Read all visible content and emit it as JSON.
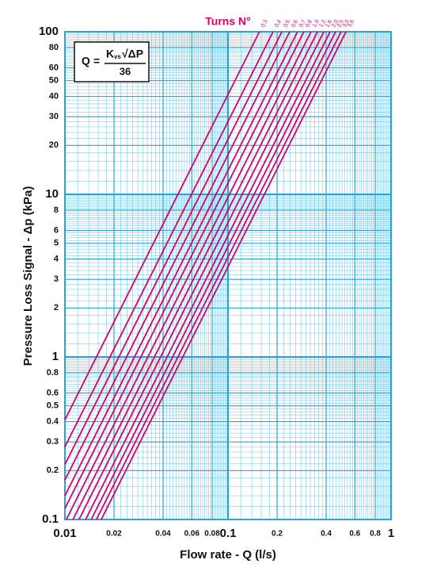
{
  "chart_data": {
    "type": "line",
    "xlabel": "Flow rate - Q (l/s)",
    "ylabel": "Pressure Loss Signal  - Δp (kPa)",
    "legend_title": "Turns N°",
    "formula": {
      "lhs": "Q",
      "eq": "=",
      "k": "K",
      "sub": "vs",
      "root": "√ΔP",
      "denominator": "36"
    },
    "xscale": "log",
    "yscale": "log",
    "grid": true,
    "color": "#d4006f",
    "grid_color": "#29a6d6",
    "xlim": [
      0.01,
      1
    ],
    "ylim": [
      0.1,
      100
    ],
    "xticks": [
      0.01,
      0.02,
      0.04,
      0.06,
      0.08,
      0.1,
      0.2,
      0.4,
      0.6,
      0.8,
      1
    ],
    "yticks": [
      0.1,
      0.2,
      0.3,
      0.4,
      0.5,
      0.6,
      0.8,
      1,
      2,
      3,
      4,
      5,
      6,
      8,
      10,
      20,
      30,
      40,
      50,
      60,
      80,
      100
    ],
    "series": [
      {
        "name": "0.3",
        "x": [
          0.01,
          0.156
        ],
        "values": [
          0.41,
          100
        ]
      },
      {
        "name": "0.4",
        "x": [
          0.01,
          0.189
        ],
        "values": [
          0.28,
          100
        ]
      },
      {
        "name": "0.5",
        "x": [
          0.01,
          0.214
        ],
        "values": [
          0.218,
          100
        ]
      },
      {
        "name": "0.6",
        "x": [
          0.01,
          0.239
        ],
        "values": [
          0.175,
          100
        ]
      },
      {
        "name": "0.7",
        "x": [
          0.01,
          0.267
        ],
        "values": [
          0.14,
          100
        ]
      },
      {
        "name": "0.8",
        "x": [
          0.01,
          0.292
        ],
        "values": [
          0.117,
          100
        ]
      },
      {
        "name": "1.0",
        "x": [
          0.0102,
          0.323
        ],
        "values": [
          0.1,
          100
        ]
      },
      {
        "name": "1.2",
        "x": [
          0.0112,
          0.354
        ],
        "values": [
          0.1,
          100
        ]
      },
      {
        "name": "1.6",
        "x": [
          0.0122,
          0.387
        ],
        "values": [
          0.1,
          100
        ]
      },
      {
        "name": "2.0",
        "x": [
          0.0134,
          0.423
        ],
        "values": [
          0.1,
          100
        ]
      },
      {
        "name": "2.5",
        "x": [
          0.0145,
          0.457
        ],
        "values": [
          0.1,
          100
        ]
      },
      {
        "name": "3.0",
        "x": [
          0.0156,
          0.494
        ],
        "values": [
          0.1,
          100
        ]
      },
      {
        "name": "3.6",
        "x": [
          0.0167,
          0.529
        ],
        "values": [
          0.1,
          100
        ]
      }
    ]
  }
}
